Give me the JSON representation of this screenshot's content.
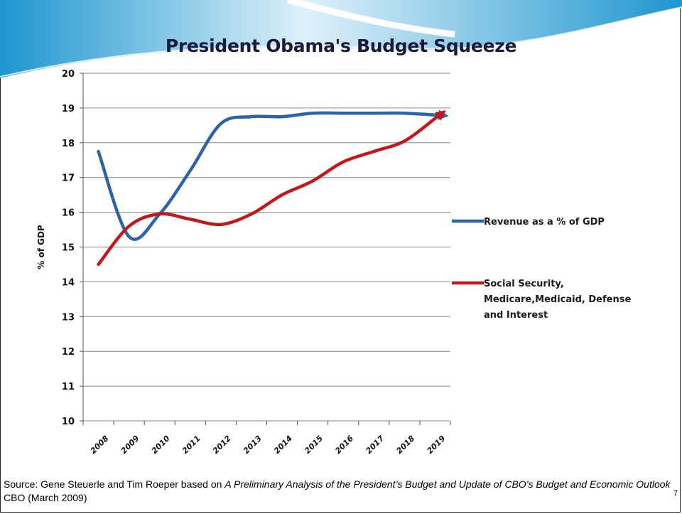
{
  "slide": {
    "title": "President Obama's Budget Squeeze",
    "source": {
      "prefix": "Source: Gene Steuerle and Tim Roeper based on ",
      "italic_title": "A Preliminary Analysis of the President’s Budget and Update of CBO’s Budget and Economic Outlook",
      "suffix": " CBO (March 2009)"
    },
    "page_number": "7"
  },
  "colors": {
    "revenue": "#2e63a6",
    "spending": "#c0181c",
    "banner_light": "#dff1fa",
    "banner_dark": "#1e96cf"
  },
  "chart_data": {
    "type": "line",
    "title": "",
    "xlabel": "",
    "ylabel": "% of GDP",
    "categories": [
      "2008",
      "2009",
      "2010",
      "2011",
      "2012",
      "2013",
      "2014",
      "2015",
      "2016",
      "2017",
      "2018",
      "2019"
    ],
    "ylim": [
      10,
      20
    ],
    "yticks": [
      "10",
      "11",
      "12",
      "13",
      "14",
      "15",
      "16",
      "17",
      "18",
      "19",
      "20"
    ],
    "grid": true,
    "legend_position": "right",
    "series": [
      {
        "name": "Revenue as a % of GDP",
        "color": "#2e63a6",
        "values": [
          17.75,
          15.3,
          15.95,
          17.2,
          18.55,
          18.75,
          18.75,
          18.85,
          18.85,
          18.85,
          18.85,
          18.8
        ],
        "arrow_end": true
      },
      {
        "name": "Social Security, Medicare,Medicaid, Defense and Interest",
        "color": "#c0181c",
        "values": [
          14.5,
          15.6,
          15.95,
          15.8,
          15.65,
          15.95,
          16.5,
          16.9,
          17.45,
          17.75,
          18.05,
          18.7
        ],
        "arrow_end": true
      }
    ]
  }
}
